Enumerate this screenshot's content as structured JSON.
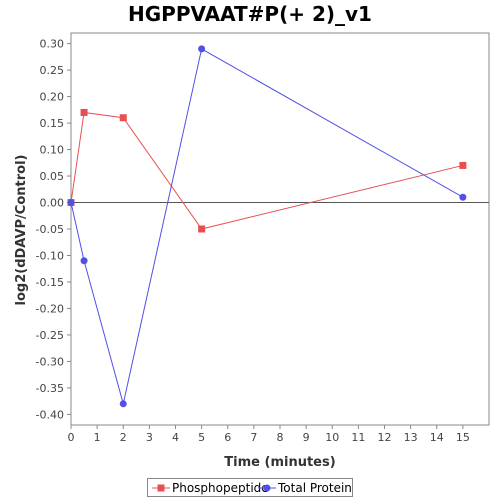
{
  "chart_data": {
    "type": "line",
    "title": "HGPPVAAT#P(+ 2)_v1",
    "xlabel": "Time (minutes)",
    "ylabel": "log2(dDAVP/Control)",
    "xlim": [
      0,
      16
    ],
    "ylim": [
      -0.42,
      0.32
    ],
    "x_ticks": [
      0,
      1,
      2,
      3,
      4,
      5,
      6,
      7,
      8,
      9,
      10,
      11,
      12,
      13,
      14,
      15
    ],
    "y_ticks": [
      0.3,
      0.25,
      0.2,
      0.15,
      0.1,
      0.05,
      0.0,
      -0.05,
      -0.1,
      -0.15,
      -0.2,
      -0.25,
      -0.3,
      -0.35,
      -0.4
    ],
    "y_tick_labels": [
      "0.30",
      "0.25",
      "0.20",
      "0.15",
      "0.10",
      "0.05",
      "0.00",
      "-0.05",
      "-0.10",
      "-0.15",
      "-0.20",
      "-0.25",
      "-0.30",
      "-0.35",
      "-0.40"
    ],
    "zero_line": true,
    "grid": false,
    "legend_position": "bottom-center",
    "series": [
      {
        "name": "Phosphopeptide",
        "color": "#e8504f",
        "marker": "square",
        "x": [
          0,
          0.5,
          2,
          5,
          15
        ],
        "y": [
          0.0,
          0.17,
          0.16,
          -0.05,
          0.07
        ]
      },
      {
        "name": "Total Protein",
        "color": "#5050e8",
        "marker": "circle",
        "x": [
          0,
          0.5,
          2,
          5,
          15
        ],
        "y": [
          0.0,
          -0.11,
          -0.38,
          0.29,
          0.01
        ]
      }
    ]
  }
}
